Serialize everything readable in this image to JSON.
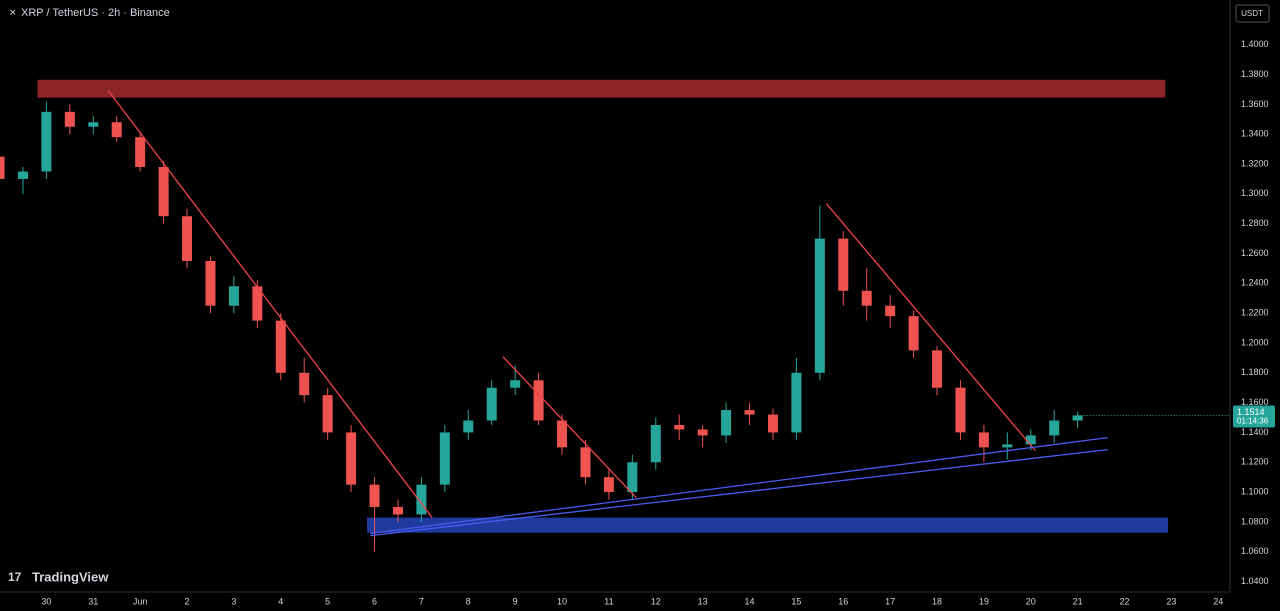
{
  "chart_data": {
    "type": "candlestick",
    "title": "XRP / TetherUS · 2h · Binance",
    "currency": "USDT",
    "brand": "TradingView",
    "up_color": "#26a69a",
    "down_color": "#ef5350",
    "x": [
      -2.0,
      -1.5,
      -1.0,
      -0.5,
      0,
      0.5,
      1.0,
      1.5,
      2.0,
      2.5,
      3.0,
      3.5,
      4.0,
      4.5,
      5.0,
      5.5,
      6.0,
      6.5,
      7.0,
      7.5,
      8.0,
      8.5,
      9.0,
      9.5,
      10.0,
      10.5,
      11.0,
      11.5,
      12.0,
      12.5,
      13.0,
      13.5,
      14.0,
      14.5,
      15.0,
      15.5,
      16.0,
      16.5,
      17.0,
      17.5,
      18.0,
      18.5,
      19.0,
      19.5,
      20.0,
      20.5,
      21.0
    ],
    "open": [
      1.325,
      1.31,
      1.315,
      1.355,
      1.345,
      1.348,
      1.338,
      1.318,
      1.285,
      1.255,
      1.225,
      1.238,
      1.215,
      1.18,
      1.165,
      1.14,
      1.105,
      1.09,
      1.085,
      1.105,
      1.14,
      1.148,
      1.17,
      1.175,
      1.148,
      1.13,
      1.11,
      1.1,
      1.12,
      1.145,
      1.142,
      1.138,
      1.155,
      1.152,
      1.14,
      1.18,
      1.27,
      1.235,
      1.225,
      1.218,
      1.195,
      1.17,
      1.14,
      1.13,
      1.132,
      1.138,
      1.148
    ],
    "high": [
      1.33,
      1.318,
      1.362,
      1.36,
      1.352,
      1.352,
      1.342,
      1.322,
      1.29,
      1.258,
      1.245,
      1.242,
      1.22,
      1.19,
      1.17,
      1.145,
      1.11,
      1.095,
      1.11,
      1.145,
      1.155,
      1.175,
      1.185,
      1.18,
      1.152,
      1.135,
      1.115,
      1.125,
      1.15,
      1.152,
      1.145,
      1.16,
      1.16,
      1.156,
      1.19,
      1.292,
      1.275,
      1.25,
      1.232,
      1.222,
      1.198,
      1.175,
      1.145,
      1.14,
      1.142,
      1.155,
      1.154
    ],
    "low": [
      1.295,
      1.3,
      1.31,
      1.34,
      1.34,
      1.335,
      1.315,
      1.28,
      1.25,
      1.22,
      1.22,
      1.21,
      1.175,
      1.16,
      1.135,
      1.1,
      1.06,
      1.08,
      1.08,
      1.1,
      1.135,
      1.145,
      1.165,
      1.145,
      1.125,
      1.105,
      1.095,
      1.095,
      1.115,
      1.135,
      1.13,
      1.133,
      1.145,
      1.135,
      1.135,
      1.175,
      1.225,
      1.215,
      1.21,
      1.19,
      1.165,
      1.135,
      1.12,
      1.122,
      1.128,
      1.133,
      1.143
    ],
    "close": [
      1.31,
      1.315,
      1.355,
      1.345,
      1.348,
      1.338,
      1.318,
      1.285,
      1.255,
      1.225,
      1.238,
      1.215,
      1.18,
      1.165,
      1.14,
      1.105,
      1.09,
      1.085,
      1.105,
      1.14,
      1.148,
      1.17,
      1.175,
      1.148,
      1.13,
      1.11,
      1.1,
      1.12,
      1.145,
      1.142,
      1.138,
      1.155,
      1.152,
      1.14,
      1.18,
      1.27,
      1.235,
      1.225,
      1.218,
      1.195,
      1.17,
      1.14,
      1.13,
      1.132,
      1.138,
      1.148,
      1.1514
    ],
    "last_price": 1.1514,
    "countdown": "01:14:36",
    "xlim": [
      -1.99,
      24.25
    ],
    "ylim": [
      1.033,
      1.43
    ],
    "xticks": [
      {
        "value": -1,
        "label": "30"
      },
      {
        "value": 0,
        "label": "31"
      },
      {
        "value": 1,
        "label": "Jun"
      },
      2,
      3,
      4,
      5,
      6,
      7,
      8,
      9,
      10,
      11,
      12,
      13,
      14,
      15,
      16,
      17,
      18,
      19,
      20,
      21,
      22,
      23,
      24
    ],
    "yticks": [
      {
        "value": 1.04,
        "label": "1.0400"
      },
      {
        "value": 1.06,
        "label": "1.0600"
      },
      {
        "value": 1.08,
        "label": "1.0800"
      },
      {
        "value": 1.1,
        "label": "1.1000"
      },
      {
        "value": 1.12,
        "label": "1.1200"
      },
      {
        "value": 1.14,
        "label": "1.1400"
      },
      {
        "value": 1.16,
        "label": "1.1600"
      },
      {
        "value": 1.18,
        "label": "1.1800"
      },
      {
        "value": 1.2,
        "label": "1.2000"
      },
      {
        "value": 1.22,
        "label": "1.2200"
      },
      {
        "value": 1.24,
        "label": "1.2400"
      },
      {
        "value": 1.26,
        "label": "1.2600"
      },
      {
        "value": 1.28,
        "label": "1.2800"
      },
      {
        "value": 1.3,
        "label": "1.3000"
      },
      {
        "value": 1.32,
        "label": "1.3200"
      },
      {
        "value": 1.34,
        "label": "1.3400"
      },
      {
        "value": 1.36,
        "label": "1.3600"
      },
      {
        "value": 1.38,
        "label": "1.3800"
      },
      {
        "value": 1.4,
        "label": "1.4000"
      }
    ],
    "zones": [
      {
        "color": "#8c2329",
        "xlim": [
          -1.19,
          22.87
        ],
        "ylim": [
          1.3645,
          1.3765
        ]
      },
      {
        "color": "#1e3a9e",
        "xlim": [
          5.84,
          22.93
        ],
        "ylim": [
          1.0728,
          1.0829
        ]
      }
    ],
    "lines": [
      {
        "color": "#f0444c",
        "x": [
          0.32,
          7.23
        ],
        "y": [
          1.3692,
          1.0829
        ]
      },
      {
        "color": "#f0444c",
        "x": [
          8.74,
          11.58
        ],
        "y": [
          1.1908,
          1.0963
        ]
      },
      {
        "color": "#f0444c",
        "x": [
          15.64,
          20.1
        ],
        "y": [
          1.2934,
          1.1278
        ]
      },
      {
        "color": "#4a5cf0",
        "x": [
          5.91,
          21.64
        ],
        "y": [
          1.0722,
          1.1365
        ]
      },
      {
        "color": "#4a5cf0",
        "x": [
          5.91,
          21.64
        ],
        "y": [
          1.0708,
          1.1285
        ]
      }
    ]
  }
}
